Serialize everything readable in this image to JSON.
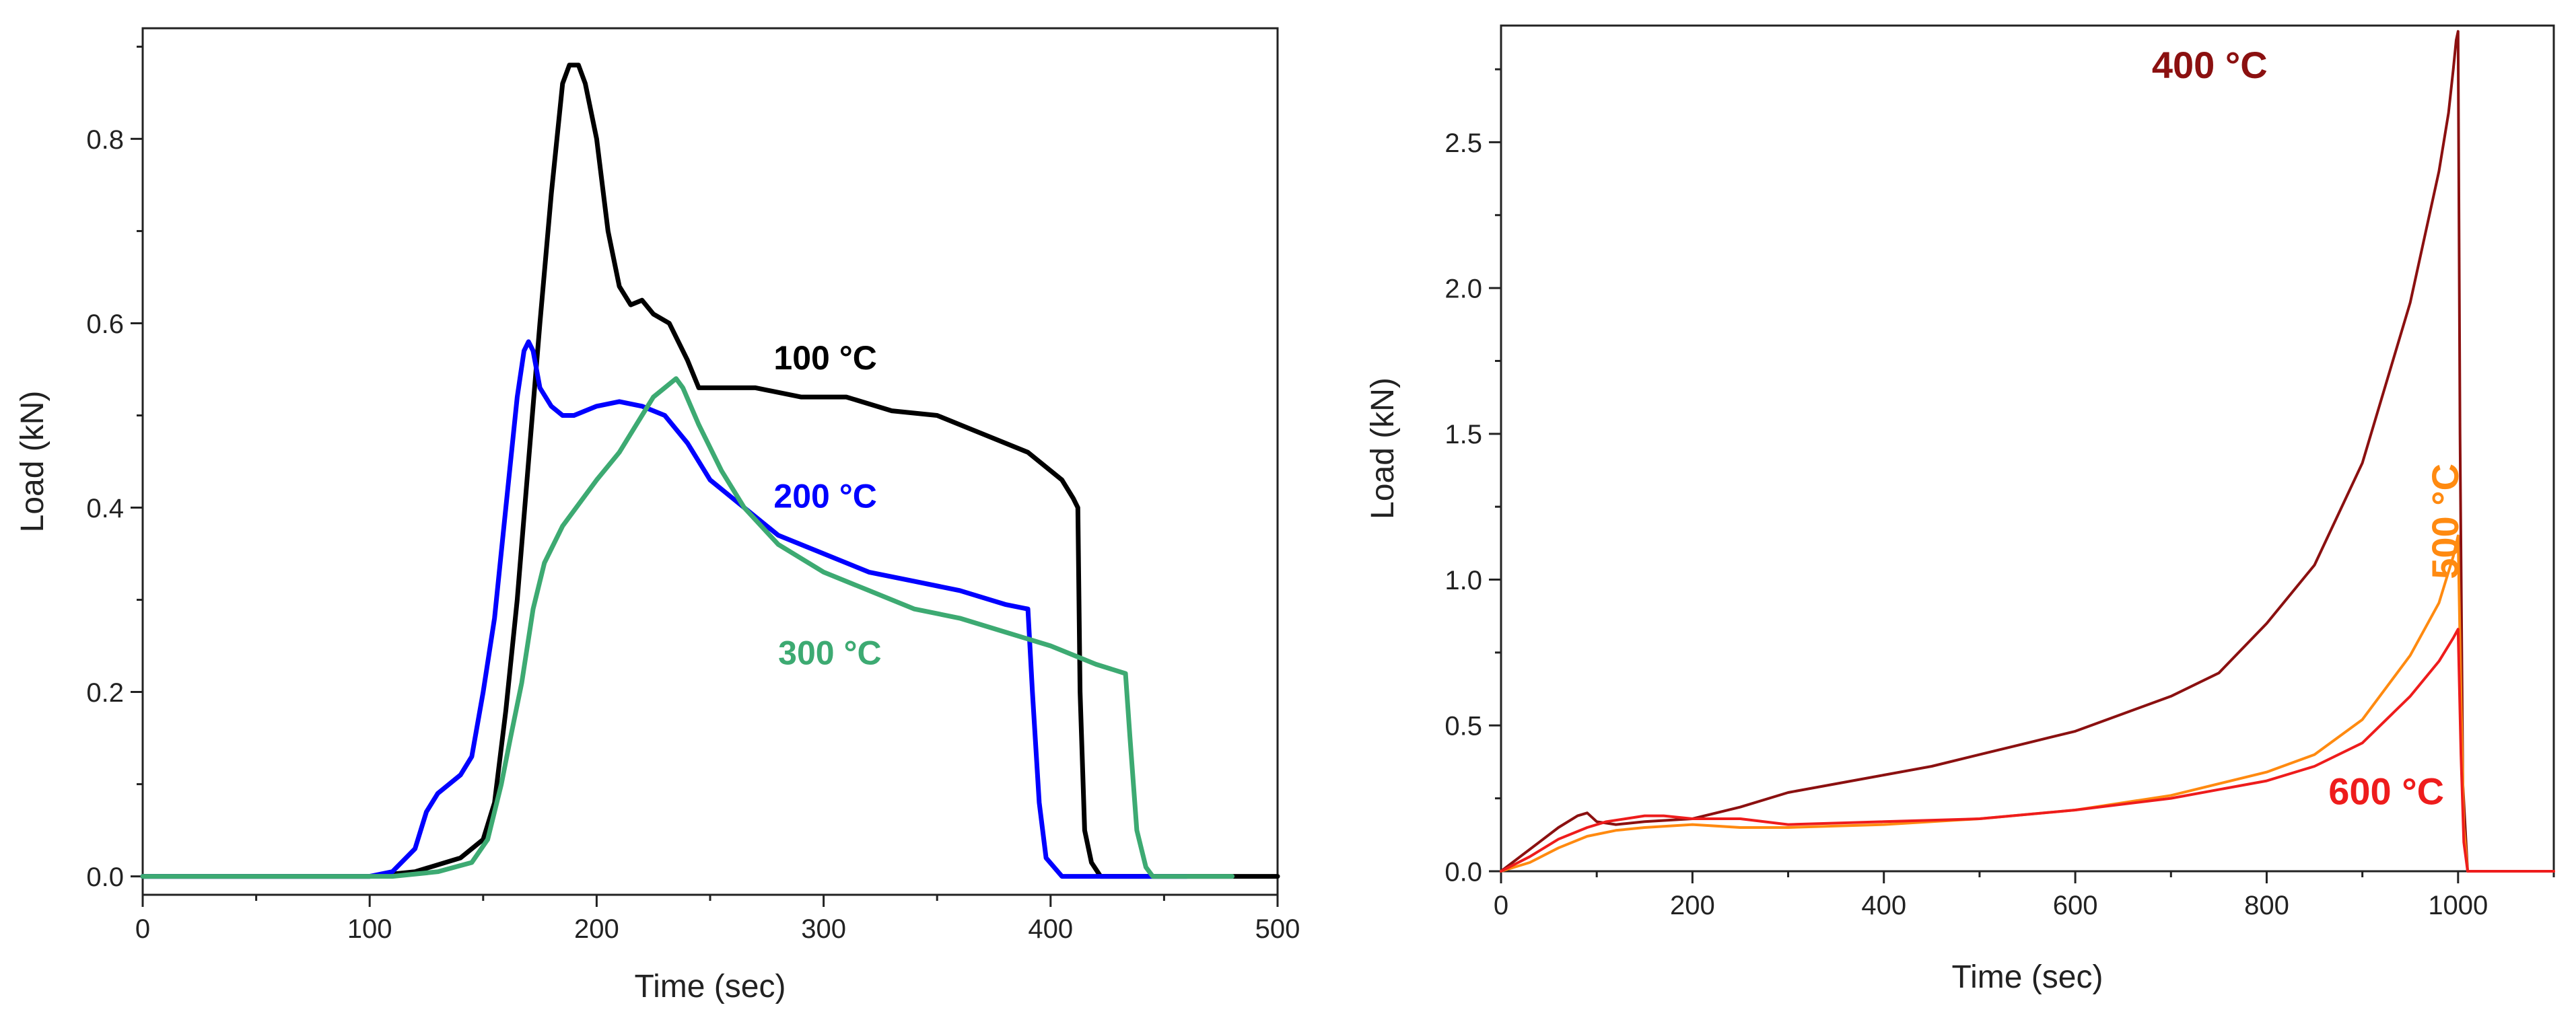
{
  "chart_data": [
    {
      "type": "line",
      "xlabel": "Time (sec)",
      "ylabel": "Load (kN)",
      "xlim": [
        0,
        500
      ],
      "ylim": [
        -0.02,
        0.92
      ],
      "xticks": [
        0,
        100,
        200,
        300,
        400,
        500
      ],
      "yticks": [
        0.0,
        0.2,
        0.4,
        0.6,
        0.8
      ],
      "xtick_labels": [
        "0",
        "100",
        "200",
        "300",
        "400",
        "500"
      ],
      "ytick_labels": [
        "0.0",
        "0.2",
        "0.4",
        "0.6",
        "0.8"
      ],
      "series": [
        {
          "name": "100 °C",
          "label": "100 °C",
          "label_at": [
            278,
            0.55
          ],
          "color": "#000000",
          "x": [
            0,
            100,
            120,
            140,
            150,
            155,
            160,
            165,
            170,
            175,
            180,
            185,
            188,
            192,
            195,
            200,
            205,
            210,
            215,
            220,
            225,
            232,
            240,
            245,
            250,
            270,
            290,
            310,
            330,
            350,
            370,
            390,
            405,
            410,
            412,
            413,
            415,
            418,
            422,
            500
          ],
          "y": [
            0,
            0,
            0.005,
            0.02,
            0.04,
            0.08,
            0.18,
            0.3,
            0.45,
            0.6,
            0.74,
            0.86,
            0.88,
            0.88,
            0.86,
            0.8,
            0.7,
            0.64,
            0.62,
            0.625,
            0.61,
            0.6,
            0.56,
            0.53,
            0.53,
            0.53,
            0.52,
            0.52,
            0.505,
            0.5,
            0.48,
            0.46,
            0.43,
            0.41,
            0.4,
            0.2,
            0.05,
            0.015,
            0,
            0
          ]
        },
        {
          "name": "200 °C",
          "label": "200 °C",
          "label_at": [
            278,
            0.4
          ],
          "color": "#0000ff",
          "x": [
            0,
            100,
            110,
            120,
            125,
            130,
            140,
            145,
            150,
            155,
            160,
            165,
            168,
            170,
            172,
            175,
            180,
            185,
            190,
            200,
            210,
            220,
            230,
            240,
            250,
            260,
            270,
            280,
            300,
            320,
            340,
            360,
            380,
            390,
            392,
            395,
            398,
            405,
            460
          ],
          "y": [
            0,
            0,
            0.005,
            0.03,
            0.07,
            0.09,
            0.11,
            0.13,
            0.2,
            0.28,
            0.4,
            0.52,
            0.57,
            0.58,
            0.57,
            0.53,
            0.51,
            0.5,
            0.5,
            0.51,
            0.515,
            0.51,
            0.5,
            0.47,
            0.43,
            0.41,
            0.39,
            0.37,
            0.35,
            0.33,
            0.32,
            0.31,
            0.295,
            0.29,
            0.2,
            0.08,
            0.02,
            0,
            0
          ]
        },
        {
          "name": "300 °C",
          "label": "300 °C",
          "label_at": [
            280,
            0.23
          ],
          "color": "#3daa72",
          "x": [
            0,
            110,
            130,
            145,
            152,
            158,
            162,
            167,
            172,
            177,
            185,
            200,
            210,
            220,
            225,
            230,
            235,
            238,
            245,
            255,
            265,
            280,
            300,
            320,
            340,
            360,
            380,
            400,
            420,
            433,
            435,
            438,
            442,
            445,
            480
          ],
          "y": [
            0,
            0,
            0.005,
            0.015,
            0.04,
            0.1,
            0.15,
            0.21,
            0.29,
            0.34,
            0.38,
            0.43,
            0.46,
            0.5,
            0.52,
            0.53,
            0.54,
            0.53,
            0.49,
            0.44,
            0.4,
            0.36,
            0.33,
            0.31,
            0.29,
            0.28,
            0.265,
            0.25,
            0.23,
            0.22,
            0.15,
            0.05,
            0.01,
            0,
            0
          ]
        }
      ]
    },
    {
      "type": "line",
      "xlabel": "Time  (sec)",
      "ylabel": "Load (kN)",
      "xlim": [
        0,
        1100
      ],
      "ylim": [
        0,
        2.9
      ],
      "xticks": [
        0,
        200,
        400,
        600,
        800,
        1000
      ],
      "yticks": [
        0.0,
        0.5,
        1.0,
        1.5,
        2.0,
        2.5
      ],
      "xtick_labels": [
        "0",
        "200",
        "400",
        "600",
        "800",
        "1000"
      ],
      "ytick_labels": [
        "0.0",
        "0.5",
        "1.0",
        "1.5",
        "2.0",
        "2.5"
      ],
      "series": [
        {
          "name": "400 °C",
          "label": "400 °C",
          "label_at": [
            680,
            2.72
          ],
          "color": "#8b1010",
          "x": [
            0,
            20,
            40,
            60,
            80,
            90,
            100,
            120,
            150,
            200,
            250,
            300,
            350,
            400,
            450,
            500,
            550,
            600,
            650,
            700,
            750,
            800,
            850,
            900,
            950,
            980,
            990,
            995,
            998,
            1000,
            1002,
            1005,
            1010,
            1100
          ],
          "y": [
            0,
            0.05,
            0.1,
            0.15,
            0.19,
            0.2,
            0.17,
            0.16,
            0.17,
            0.18,
            0.22,
            0.27,
            0.3,
            0.33,
            0.36,
            0.4,
            0.44,
            0.48,
            0.54,
            0.6,
            0.68,
            0.85,
            1.05,
            1.4,
            1.95,
            2.4,
            2.6,
            2.75,
            2.85,
            2.88,
            1.5,
            0.3,
            0,
            0
          ]
        },
        {
          "name": "500 °C",
          "label": "500 °C",
          "label_at": [
            1000,
            1.2
          ],
          "color": "#ff8a10",
          "x": [
            0,
            30,
            60,
            90,
            120,
            150,
            200,
            250,
            300,
            400,
            500,
            600,
            700,
            800,
            850,
            900,
            950,
            980,
            995,
            1000,
            1003,
            1006,
            1010,
            1100
          ],
          "y": [
            0,
            0.03,
            0.08,
            0.12,
            0.14,
            0.15,
            0.16,
            0.15,
            0.15,
            0.16,
            0.18,
            0.21,
            0.26,
            0.34,
            0.4,
            0.52,
            0.74,
            0.92,
            1.08,
            1.15,
            0.6,
            0.15,
            0,
            0
          ]
        },
        {
          "name": "600 °C",
          "label": "600 °C",
          "label_at": [
            925,
            0.23
          ],
          "color": "#ee1c1c",
          "x": [
            0,
            30,
            60,
            90,
            110,
            130,
            150,
            170,
            200,
            250,
            300,
            400,
            500,
            600,
            700,
            800,
            850,
            900,
            950,
            980,
            995,
            1000,
            1003,
            1006,
            1010,
            1100
          ],
          "y": [
            0,
            0.05,
            0.11,
            0.15,
            0.17,
            0.18,
            0.19,
            0.19,
            0.18,
            0.18,
            0.16,
            0.17,
            0.18,
            0.21,
            0.25,
            0.31,
            0.36,
            0.44,
            0.6,
            0.72,
            0.8,
            0.83,
            0.4,
            0.1,
            0,
            0
          ]
        }
      ]
    }
  ]
}
